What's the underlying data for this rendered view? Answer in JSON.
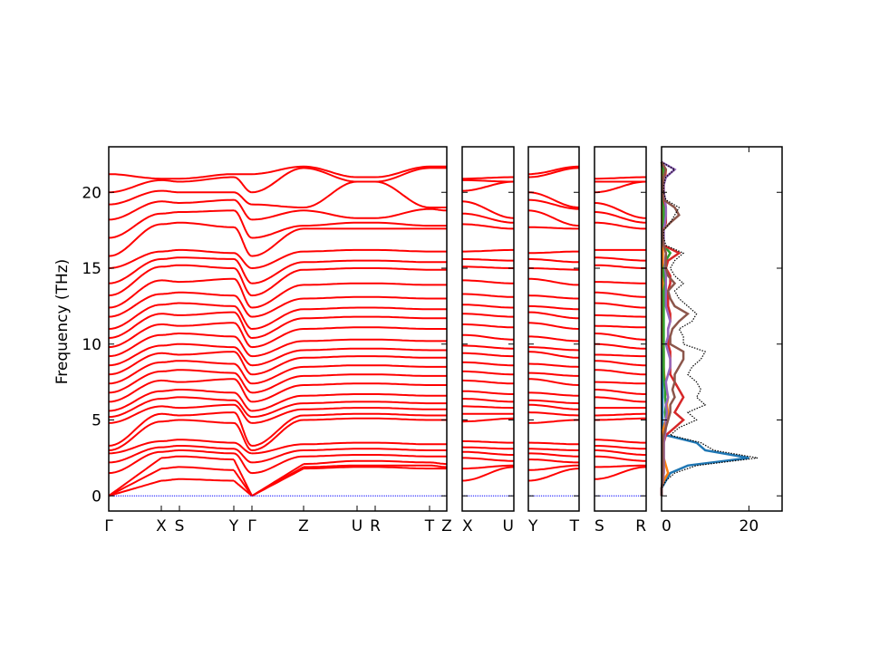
{
  "chart_data": {
    "type": "line",
    "ylabel": "Frequency (THz)",
    "ylim": [
      -1,
      23
    ],
    "yticks": [
      0,
      5,
      10,
      15,
      20
    ],
    "band_color": "#ff0000",
    "zero_line_color": "#0000ff",
    "band_panels": [
      {
        "labels": [
          "Γ",
          "X",
          "S",
          "Y",
          "Γ",
          "Z",
          "U",
          "R",
          "T",
          "Z"
        ]
      },
      {
        "labels": [
          "X",
          "U"
        ]
      },
      {
        "labels": [
          "Y",
          "T"
        ]
      },
      {
        "labels": [
          "S",
          "R"
        ]
      }
    ],
    "band_frequencies": {
      "Γ": [
        0,
        0,
        0,
        1.5,
        2.2,
        2.8,
        3.0,
        3.3,
        4.8,
        5.2,
        5.6,
        6.2,
        6.8,
        7.4,
        8.0,
        8.6,
        9.2,
        9.8,
        10.4,
        11.0,
        11.8,
        12.4,
        13.2,
        14.0,
        15.0,
        15.8,
        17.0,
        18.2,
        19.2,
        20.0,
        21.2
      ],
      "X": [
        1.0,
        1.8,
        2.5,
        2.9,
        3.2,
        3.6,
        4.9,
        5.4,
        5.9,
        6.4,
        6.9,
        7.6,
        8.2,
        8.8,
        9.4,
        9.9,
        10.6,
        11.3,
        12.0,
        12.6,
        13.3,
        14.2,
        15.1,
        15.6,
        16.1,
        17.9,
        18.6,
        19.4,
        20.1,
        20.8,
        20.9
      ],
      "S": [
        1.1,
        1.9,
        2.6,
        3.0,
        3.3,
        3.7,
        5.0,
        5.3,
        5.8,
        6.5,
        7.0,
        7.5,
        8.3,
        8.9,
        9.3,
        10.0,
        10.7,
        11.2,
        11.9,
        12.7,
        13.4,
        14.1,
        15.2,
        15.7,
        16.2,
        18.0,
        18.7,
        19.3,
        20.0,
        20.7,
        20.9
      ],
      "Y": [
        1.0,
        1.7,
        2.4,
        2.8,
        3.1,
        3.5,
        4.8,
        5.5,
        6.0,
        6.3,
        6.8,
        7.7,
        8.1,
        8.7,
        9.5,
        9.8,
        10.5,
        11.4,
        12.1,
        12.5,
        13.2,
        14.3,
        15.0,
        15.6,
        16.0,
        17.7,
        18.8,
        19.5,
        20.0,
        21.0,
        21.2
      ],
      "Z": [
        1.8,
        1.9,
        2.1,
        2.6,
        3.0,
        3.4,
        5.0,
        5.3,
        5.7,
        6.1,
        6.6,
        7.3,
        7.9,
        8.5,
        9.1,
        9.6,
        10.2,
        11.0,
        11.7,
        12.3,
        13.0,
        13.9,
        14.9,
        15.4,
        16.1,
        17.6,
        17.8,
        18.8,
        19.0,
        21.6,
        21.7
      ],
      "U": [
        1.9,
        2.0,
        2.3,
        2.7,
        3.1,
        3.5,
        5.1,
        5.4,
        5.8,
        6.2,
        6.7,
        7.4,
        8.0,
        8.6,
        9.2,
        9.7,
        10.3,
        11.1,
        11.8,
        12.4,
        13.1,
        14.0,
        15.0,
        15.5,
        16.2,
        17.6,
        18.0,
        18.3,
        20.7,
        20.7,
        21.0
      ],
      "R": [
        1.9,
        2.0,
        2.3,
        2.7,
        3.1,
        3.5,
        5.1,
        5.4,
        5.8,
        6.2,
        6.7,
        7.4,
        8.0,
        8.6,
        9.2,
        9.7,
        10.3,
        11.1,
        11.8,
        12.4,
        13.1,
        14.0,
        15.0,
        15.5,
        16.2,
        17.6,
        18.0,
        18.3,
        20.7,
        20.7,
        21.0
      ],
      "T": [
        1.8,
        2.0,
        2.2,
        2.6,
        3.0,
        3.4,
        5.0,
        5.3,
        5.7,
        6.1,
        6.6,
        7.3,
        7.9,
        8.5,
        9.1,
        9.6,
        10.2,
        11.0,
        11.7,
        12.3,
        13.0,
        13.9,
        14.9,
        15.4,
        16.1,
        17.6,
        17.8,
        18.9,
        19.0,
        21.6,
        21.7
      ]
    },
    "dos": {
      "xlim": [
        0,
        27.6
      ],
      "xticks": [
        0,
        20
      ],
      "freq_step": 0.5,
      "series": [
        {
          "color": "#000000",
          "style": "dotted",
          "values": [
            0,
            0,
            1,
            3,
            8,
            22,
            12,
            9,
            2,
            4,
            8,
            6,
            10,
            8,
            9,
            8,
            6,
            7,
            9,
            10,
            5,
            5,
            4,
            7,
            8,
            6,
            4,
            3,
            5,
            3,
            2,
            3,
            5,
            1,
            0.5,
            0.5,
            2,
            3,
            4,
            1,
            0.5,
            0.5,
            1,
            3,
            0
          ]
        },
        {
          "color": "#1f77b4",
          "style": "solid",
          "values": [
            0,
            0,
            1,
            2,
            6,
            20,
            10,
            8,
            1,
            0.3,
            0.2,
            0.2,
            0.2,
            0.2,
            0.2,
            0.2,
            0.2,
            0.2,
            0.2,
            0.2,
            0.2,
            0.2,
            0.2,
            0.2,
            0.2,
            0.2,
            0.2,
            0.2,
            0.2,
            0.2,
            0.2,
            0.2,
            0.2,
            0.2,
            0.2,
            0.2,
            0.2,
            0.2,
            0.2,
            0.2,
            0.2,
            0.2,
            0.2,
            0.2,
            0
          ]
        },
        {
          "color": "#ff7f0e",
          "style": "solid",
          "values": [
            0,
            0,
            0.5,
            1.5,
            1,
            0.5,
            0.5,
            0.5,
            0.3,
            0.5,
            1,
            1.5,
            1.2,
            1.5,
            1,
            0.8,
            0.6,
            0.5,
            0.5,
            0.5,
            0.3,
            0.3,
            0.3,
            0.3,
            0.3,
            0.3,
            0.3,
            0.3,
            0.3,
            0.3,
            0.3,
            0.3,
            0.3,
            0.3,
            0.2,
            0.2,
            0.2,
            0.2,
            0.2,
            0.2,
            0.2,
            0.2,
            0.2,
            0.2,
            0
          ]
        },
        {
          "color": "#2ca02c",
          "style": "solid",
          "values": [
            0,
            0,
            0.3,
            0.5,
            0.5,
            0.5,
            0.5,
            0.5,
            0.5,
            1,
            1,
            0.8,
            1,
            0.8,
            0.8,
            0.6,
            0.5,
            0.5,
            0.5,
            0.5,
            0.5,
            0.5,
            0.5,
            0.5,
            0.5,
            0.5,
            0.5,
            0.5,
            0.8,
            0.5,
            0.5,
            1,
            2,
            0.5,
            0.3,
            0.3,
            0.5,
            0.5,
            0.5,
            0.3,
            0.3,
            0.3,
            0.5,
            0.5,
            0
          ]
        },
        {
          "color": "#d62728",
          "style": "solid",
          "values": [
            0,
            0,
            0.3,
            0.5,
            0.5,
            0.5,
            0.5,
            0.5,
            1,
            3,
            5,
            3,
            4,
            5,
            4,
            3,
            2,
            2,
            2,
            2,
            1.5,
            1.5,
            1.5,
            2,
            2,
            1.5,
            1.5,
            1.5,
            2,
            2,
            1,
            1.5,
            4,
            0.5,
            0.3,
            0.3,
            1,
            1,
            1,
            0.5,
            0.5,
            0.5,
            0.8,
            1,
            0
          ]
        },
        {
          "color": "#9467bd",
          "style": "solid",
          "values": [
            0,
            0,
            0.3,
            0.5,
            0.5,
            0.5,
            0.5,
            0.5,
            0.8,
            1,
            1,
            1.2,
            1,
            1.5,
            1.2,
            1,
            1.5,
            2,
            2,
            1.5,
            1,
            1.5,
            1.5,
            2,
            1.5,
            1,
            1,
            1,
            1,
            1,
            0.8,
            0.8,
            1,
            0.5,
            0.5,
            0.5,
            0.8,
            1,
            1,
            0.8,
            0.5,
            0.5,
            1,
            3,
            0
          ]
        },
        {
          "color": "#8c564b",
          "style": "solid",
          "values": [
            0,
            0,
            0.2,
            0.3,
            0.3,
            0.3,
            0.3,
            0.3,
            0.5,
            1,
            1.5,
            2,
            2,
            3,
            2.5,
            3,
            3,
            4,
            5,
            5,
            2,
            2,
            2.5,
            4,
            6,
            3,
            2,
            1.5,
            3,
            1.5,
            1,
            1,
            1,
            0.5,
            0.3,
            0.3,
            2,
            4,
            3,
            0.5,
            0.3,
            0.3,
            0.5,
            1,
            0
          ]
        }
      ]
    }
  }
}
